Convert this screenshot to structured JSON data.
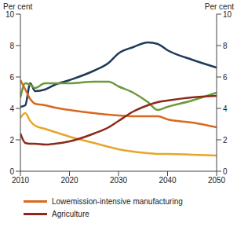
{
  "chart_data": {
    "type": "line",
    "y_label": "Per cent",
    "y2_label": "Per cent",
    "x": [
      2010,
      2011,
      2012,
      2013,
      2015,
      2017,
      2020,
      2025,
      2028,
      2030,
      2033,
      2036,
      2038,
      2040,
      2045,
      2050
    ],
    "xlim": [
      2010,
      2050
    ],
    "xticks": [
      2010,
      2020,
      2030,
      2040,
      2050
    ],
    "ylim": [
      0,
      10
    ],
    "yticks": [
      0,
      2,
      4,
      6,
      8,
      10
    ],
    "y2lim": [
      0,
      10
    ],
    "y2ticks": [
      0,
      2,
      4,
      6,
      8,
      10
    ],
    "grid": false,
    "legend": "bottom",
    "series": [
      {
        "color": "#1F3A5A",
        "values": [
          4.1,
          4.2,
          5.6,
          5.1,
          5.2,
          5.5,
          5.8,
          6.4,
          6.9,
          7.5,
          7.9,
          8.2,
          8.1,
          7.7,
          7.1,
          6.6
        ]
      },
      {
        "color": "#6B9A3A",
        "values": [
          4.7,
          5.6,
          5.5,
          5.3,
          5.6,
          5.6,
          5.6,
          5.7,
          5.7,
          5.4,
          5.0,
          4.4,
          3.9,
          4.1,
          4.5,
          5.0
        ]
      },
      {
        "name": "Lowemission-intensive manufacturing",
        "color": "#D9691E",
        "values": [
          5.8,
          5.2,
          4.6,
          4.3,
          4.2,
          4.05,
          3.9,
          3.7,
          3.6,
          3.55,
          3.5,
          3.5,
          3.5,
          3.3,
          3.1,
          2.8
        ]
      },
      {
        "color": "#E8A628",
        "values": [
          3.4,
          3.7,
          3.2,
          2.9,
          2.7,
          2.5,
          2.2,
          1.8,
          1.55,
          1.4,
          1.25,
          1.15,
          1.1,
          1.1,
          1.05,
          1.0
        ]
      },
      {
        "name": "Agriculture",
        "color": "#8B2A1A",
        "values": [
          2.4,
          1.8,
          1.75,
          1.75,
          1.7,
          1.75,
          1.9,
          2.4,
          2.8,
          3.2,
          3.8,
          4.2,
          4.4,
          4.5,
          4.7,
          4.8
        ]
      }
    ]
  }
}
